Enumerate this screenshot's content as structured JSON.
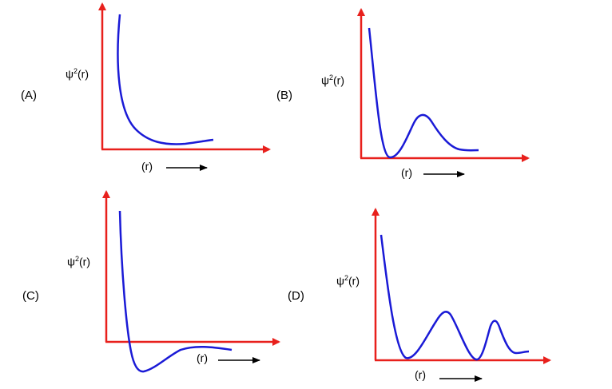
{
  "panels": [
    {
      "id": "A",
      "letter": "(A)",
      "ylabel_base": "ψ",
      "ylabel_sup": "2",
      "ylabel_tail": "(r)",
      "xlabel": "(r)"
    },
    {
      "id": "B",
      "letter": "(B)",
      "ylabel_base": "ψ",
      "ylabel_sup": "2",
      "ylabel_tail": "(r)",
      "xlabel": "(r)"
    },
    {
      "id": "C",
      "letter": "(C)",
      "ylabel_base": "ψ",
      "ylabel_sup": "2",
      "ylabel_tail": "(r)",
      "xlabel": "(r)"
    },
    {
      "id": "D",
      "letter": "(D)",
      "ylabel_base": "ψ",
      "ylabel_sup": "2",
      "ylabel_tail": "(r)",
      "xlabel": "(r)"
    }
  ],
  "colors": {
    "axis": "#e8201c",
    "curve": "#1a1ad6",
    "arrow": "#000000"
  }
}
